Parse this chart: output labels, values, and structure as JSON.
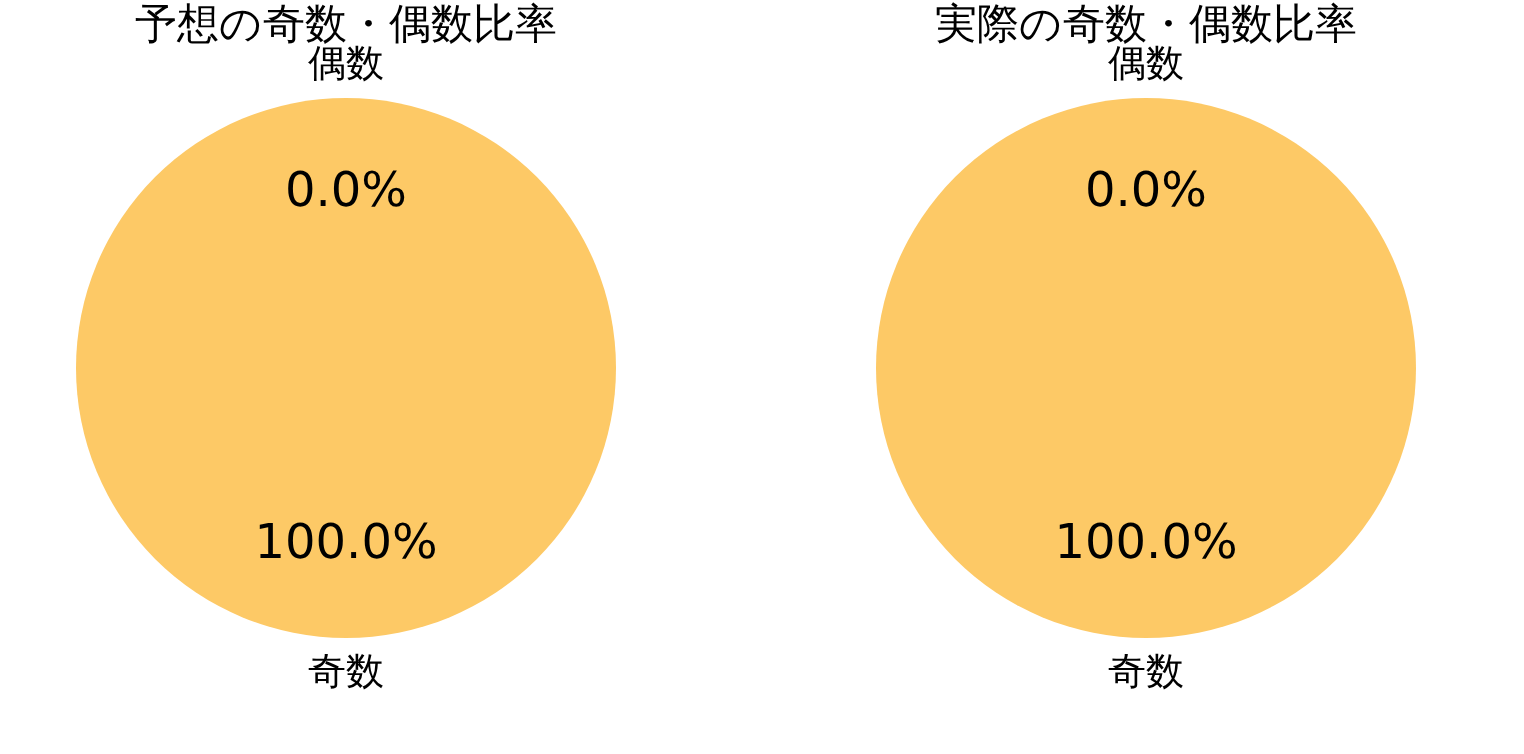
{
  "chart_data": [
    {
      "type": "pie",
      "title": "予想の奇数・偶数比率",
      "categories": [
        "偶数",
        "奇数"
      ],
      "values": [
        0,
        100
      ],
      "colors": [
        "#fdc966",
        "#fdc966"
      ],
      "value_labels": [
        "0.0%",
        "100.0%"
      ]
    },
    {
      "type": "pie",
      "title": "実際の奇数・偶数比率",
      "categories": [
        "偶数",
        "奇数"
      ],
      "values": [
        0,
        100
      ],
      "colors": [
        "#fdc966",
        "#fdc966"
      ],
      "value_labels": [
        "0.0%",
        "100.0%"
      ]
    }
  ]
}
